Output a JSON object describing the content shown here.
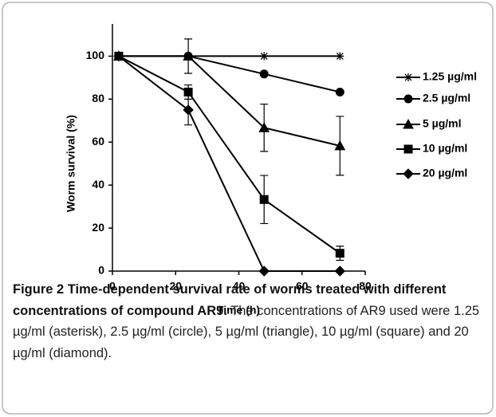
{
  "chart_data": {
    "type": "line",
    "xlabel": "Time (h)",
    "ylabel": "Worm survival (%)",
    "x": [
      2,
      24,
      48,
      72
    ],
    "xlim": [
      0,
      80
    ],
    "xticks": [
      0,
      20,
      40,
      60,
      80
    ],
    "ylim": [
      0,
      115
    ],
    "yticks": [
      0,
      20,
      40,
      60,
      80,
      100
    ],
    "legend": "right",
    "series": [
      {
        "name": "1.25 µg/ml",
        "color": "#000000",
        "marker": "asterisk",
        "values": [
          100,
          100,
          100,
          100
        ],
        "errors": [
          null,
          null,
          null,
          null
        ]
      },
      {
        "name": "2.5 µg/ml",
        "color": "#000000",
        "marker": "circle",
        "values": [
          100,
          100,
          91.7,
          83.3
        ],
        "errors": [
          null,
          null,
          null,
          null
        ]
      },
      {
        "name": "5 µg/ml",
        "color": "#000000",
        "marker": "triangle",
        "values": [
          100,
          100,
          66.7,
          58.3
        ],
        "errors": [
          null,
          8,
          11,
          13.7
        ]
      },
      {
        "name": "10  µg/ml",
        "color": "#000000",
        "marker": "square",
        "values": [
          100,
          83.3,
          33.3,
          8.3
        ],
        "errors": [
          null,
          3.3,
          11.2,
          3.3
        ]
      },
      {
        "name": "20  µg/ml",
        "color": "#000000",
        "marker": "diamond",
        "values": [
          100,
          75,
          0,
          0
        ],
        "errors": [
          null,
          7,
          null,
          null
        ]
      }
    ]
  },
  "caption": {
    "label": "Figure 2 Time-dependent survival rate of worms treated with different concentrations of compound AR9.",
    "text": "The concentrations of AR9 used were 1.25 µg/ml (asterisk), 2.5 µg/ml (circle), 5 µg/ml (triangle), 10 µg/ml (square) and 20 µg/ml (diamond)."
  }
}
